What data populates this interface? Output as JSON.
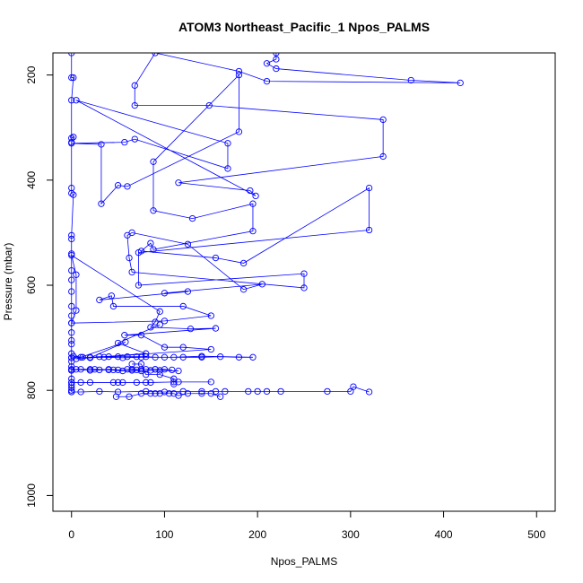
{
  "chart_data": {
    "type": "line",
    "title": "ATOM3 Northeast_Pacific_1 Npos_PALMS",
    "xlabel": "Npos_PALMS",
    "ylabel": "Pressure (mbar)",
    "xlim": [
      -20,
      520
    ],
    "ylim": [
      1030,
      158
    ],
    "y_axis_inverted": true,
    "x_ticks": [
      0,
      100,
      200,
      300,
      400,
      500
    ],
    "x_tick_labels": [
      "0",
      "100",
      "200",
      "300",
      "400",
      "500"
    ],
    "y_ticks": [
      200,
      400,
      600,
      800,
      1000
    ],
    "y_tick_labels": [
      "200",
      "400",
      "600",
      "800",
      "1000"
    ],
    "grid": false,
    "legend": "none",
    "series_color": "#0000ff",
    "markers": "open-circle",
    "series": [
      {
        "points": [
          [
            0,
            158
          ],
          [
            0,
            205
          ],
          [
            2,
            205
          ],
          [
            0,
            248
          ],
          [
            0,
            320
          ],
          [
            2,
            318
          ],
          [
            0,
            328
          ],
          [
            0,
            415
          ],
          [
            0,
            425
          ],
          [
            2,
            428
          ],
          [
            0,
            505
          ],
          [
            0,
            512
          ],
          [
            0,
            540
          ],
          [
            0,
            572
          ],
          [
            0,
            590
          ],
          [
            0,
            612
          ],
          [
            0,
            640
          ],
          [
            0,
            658
          ],
          [
            0,
            672
          ],
          [
            0,
            690
          ],
          [
            0,
            705
          ],
          [
            0,
            712
          ],
          [
            0,
            730
          ],
          [
            0,
            738
          ],
          [
            0,
            745
          ],
          [
            0,
            755
          ],
          [
            0,
            762
          ],
          [
            0,
            778
          ],
          [
            0,
            785
          ],
          [
            0,
            790
          ],
          [
            0,
            795
          ],
          [
            0,
            800
          ],
          [
            0,
            803
          ]
        ]
      },
      {
        "points": [
          [
            220,
            158
          ],
          [
            220,
            170
          ],
          [
            210,
            178
          ],
          [
            220,
            188
          ],
          [
            365,
            210
          ],
          [
            418,
            215
          ],
          [
            210,
            212
          ],
          [
            180,
            193
          ],
          [
            90,
            158
          ],
          [
            68,
            220
          ],
          [
            68,
            258
          ],
          [
            148,
            258
          ],
          [
            335,
            285
          ],
          [
            335,
            355
          ],
          [
            115,
            405
          ],
          [
            192,
            420
          ],
          [
            198,
            430
          ],
          [
            5,
            248
          ],
          [
            168,
            330
          ],
          [
            168,
            378
          ],
          [
            68,
            322
          ],
          [
            57,
            328
          ],
          [
            0,
            330
          ],
          [
            32,
            332
          ],
          [
            32,
            445
          ],
          [
            50,
            410
          ],
          [
            60,
            412
          ],
          [
            180,
            308
          ],
          [
            180,
            200
          ],
          [
            88,
            365
          ],
          [
            88,
            458
          ],
          [
            130,
            473
          ],
          [
            195,
            445
          ],
          [
            195,
            497
          ],
          [
            88,
            532
          ],
          [
            85,
            520
          ],
          [
            75,
            535
          ],
          [
            155,
            548
          ],
          [
            185,
            558
          ],
          [
            320,
            415
          ],
          [
            320,
            495
          ],
          [
            72,
            538
          ],
          [
            72,
            600
          ],
          [
            250,
            578
          ],
          [
            250,
            605
          ],
          [
            65,
            575
          ],
          [
            62,
            548
          ],
          [
            60,
            505
          ],
          [
            65,
            500
          ],
          [
            125,
            522
          ],
          [
            185,
            608
          ],
          [
            205,
            598
          ],
          [
            100,
            615
          ],
          [
            125,
            612
          ],
          [
            30,
            628
          ],
          [
            43,
            620
          ],
          [
            45,
            640
          ],
          [
            120,
            640
          ],
          [
            150,
            658
          ],
          [
            100,
            668
          ],
          [
            0,
            672
          ],
          [
            5,
            648
          ],
          [
            5,
            580
          ],
          [
            0,
            543
          ],
          [
            95,
            650
          ],
          [
            90,
            670
          ],
          [
            85,
            680
          ],
          [
            128,
            683
          ],
          [
            155,
            682
          ],
          [
            57,
            695
          ],
          [
            75,
            695
          ],
          [
            100,
            718
          ],
          [
            120,
            718
          ],
          [
            150,
            722
          ],
          [
            5,
            740
          ],
          [
            58,
            708
          ],
          [
            20,
            738
          ],
          [
            80,
            730
          ],
          [
            50,
            710
          ],
          [
            95,
            675
          ]
        ]
      },
      {
        "points": [
          [
            2,
            735
          ],
          [
            12,
            737
          ],
          [
            20,
            737
          ],
          [
            30,
            736
          ],
          [
            40,
            736
          ],
          [
            50,
            736
          ],
          [
            60,
            736
          ],
          [
            70,
            736
          ],
          [
            80,
            736
          ],
          [
            90,
            737
          ],
          [
            100,
            737
          ],
          [
            120,
            737
          ],
          [
            140,
            737
          ],
          [
            160,
            736
          ],
          [
            180,
            737
          ],
          [
            195,
            737
          ],
          [
            140,
            735
          ],
          [
            110,
            737
          ],
          [
            75,
            737
          ],
          [
            55,
            738
          ],
          [
            35,
            737
          ],
          [
            10,
            737
          ],
          [
            0,
            738
          ]
        ]
      },
      {
        "points": [
          [
            0,
            762
          ],
          [
            10,
            760
          ],
          [
            20,
            760
          ],
          [
            30,
            761
          ],
          [
            40,
            760
          ],
          [
            50,
            761
          ],
          [
            60,
            760
          ],
          [
            70,
            761
          ],
          [
            75,
            760
          ],
          [
            80,
            760
          ],
          [
            90,
            760
          ],
          [
            100,
            760
          ],
          [
            108,
            761
          ],
          [
            90,
            760
          ],
          [
            65,
            760
          ],
          [
            45,
            761
          ],
          [
            25,
            760
          ],
          [
            5,
            760
          ]
        ]
      },
      {
        "points": [
          [
            0,
            785
          ],
          [
            10,
            785
          ],
          [
            20,
            785
          ],
          [
            45,
            785
          ],
          [
            50,
            785
          ],
          [
            55,
            785
          ],
          [
            70,
            785
          ],
          [
            80,
            785
          ],
          [
            85,
            785
          ],
          [
            110,
            784
          ],
          [
            115,
            784
          ],
          [
            150,
            784
          ]
        ]
      },
      {
        "points": [
          [
            0,
            803
          ],
          [
            10,
            803
          ],
          [
            30,
            802
          ],
          [
            50,
            803
          ],
          [
            80,
            802
          ],
          [
            100,
            803
          ],
          [
            120,
            802
          ],
          [
            140,
            802
          ],
          [
            155,
            802
          ],
          [
            165,
            802
          ],
          [
            190,
            802
          ],
          [
            200,
            802
          ],
          [
            210,
            802
          ],
          [
            225,
            802
          ],
          [
            275,
            802
          ],
          [
            300,
            802
          ],
          [
            303,
            793
          ],
          [
            320,
            803
          ]
        ]
      },
      {
        "points": [
          [
            48,
            812
          ],
          [
            62,
            812
          ],
          [
            75,
            806
          ],
          [
            85,
            806
          ],
          [
            90,
            806
          ],
          [
            95,
            806
          ],
          [
            105,
            806
          ],
          [
            110,
            806
          ],
          [
            115,
            810
          ],
          [
            125,
            806
          ],
          [
            140,
            806
          ],
          [
            150,
            806
          ],
          [
            160,
            812
          ]
        ]
      },
      {
        "points": [
          [
            0,
            760
          ],
          [
            20,
            762
          ],
          [
            40,
            761
          ],
          [
            55,
            763
          ],
          [
            65,
            762
          ],
          [
            75,
            763
          ],
          [
            85,
            762
          ],
          [
            95,
            762
          ],
          [
            115,
            763
          ]
        ]
      },
      {
        "points": [
          [
            65,
            750
          ],
          [
            75,
            750
          ],
          [
            80,
            770
          ],
          [
            95,
            770
          ],
          [
            110,
            778
          ],
          [
            110,
            788
          ]
        ]
      }
    ]
  }
}
